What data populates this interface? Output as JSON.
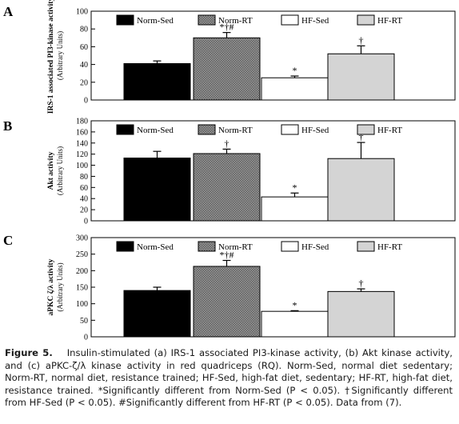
{
  "panels": [
    {
      "letter": "A",
      "ylabel_lines": [
        "IRS-1 associated PI3-kinase activity",
        "(Arbitrary Units)"
      ],
      "ticks": [
        "0",
        "20",
        "40",
        "60",
        "80",
        "100"
      ],
      "legend_labels": [
        "Norm-Sed",
        "Norm-RT",
        "HF-Sed",
        "HF-RT"
      ],
      "markers": [
        "",
        "*†#",
        "*",
        "†"
      ]
    },
    {
      "letter": "B",
      "ylabel_lines": [
        "Akt activity",
        "(Arbitrary Units)"
      ],
      "ticks": [
        "0",
        "20",
        "40",
        "60",
        "80",
        "100",
        "120",
        "140",
        "160",
        "180"
      ],
      "legend_labels": [
        "Norm-Sed",
        "Norm-RT",
        "HF-Sed",
        "HF-RT"
      ],
      "markers": [
        "",
        "†",
        "*",
        "†"
      ]
    },
    {
      "letter": "C",
      "ylabel_lines": [
        "aPKC ζ/λ activity",
        "(Arbitrary Units)"
      ],
      "ticks": [
        "0",
        "50",
        "100",
        "150",
        "200",
        "250",
        "300"
      ],
      "legend_labels": [
        "Norm-Sed",
        "Norm-RT",
        "HF-Sed",
        "HF-RT"
      ],
      "markers": [
        "",
        "*†#",
        "*",
        "†"
      ]
    }
  ],
  "caption": {
    "label": "Figure 5.",
    "text": "Insulin-stimulated (a) IRS-1 associated PI3-kinase activity, (b) Akt kinase activity, and (c) aPKC-ζ/λ kinase activity in red quadriceps (RQ). Norm-Sed, normal diet sedentary; Norm-RT, normal diet, resistance trained; HF-Sed, high-fat diet, sedentary; HF-RT, high-fat diet, resistance trained. *Significantly different from Norm-Sed (P < 0.05). †Significantly different from HF-Sed (P < 0.05). #Significantly different from HF-RT (P < 0.05). Data from (7)."
  },
  "colors": {
    "norm_sed": "#000000",
    "norm_rt": "#7a7a7a",
    "hf_sed": "#ffffff",
    "hf_rt": "#d4d4d4"
  },
  "chart_data": [
    {
      "type": "bar",
      "categories": [
        "Norm-Sed",
        "Norm-RT",
        "HF-Sed",
        "HF-RT"
      ],
      "values": [
        41,
        70,
        25,
        52
      ],
      "errors": [
        3,
        6,
        2,
        9
      ],
      "ylim": [
        0,
        100
      ],
      "grid": false,
      "legend": "top"
    },
    {
      "type": "bar",
      "categories": [
        "Norm-Sed",
        "Norm-RT",
        "HF-Sed",
        "HF-RT"
      ],
      "values": [
        113,
        121,
        43,
        112
      ],
      "errors": [
        12,
        8,
        7,
        29
      ],
      "ylim": [
        0,
        180
      ],
      "grid": false,
      "legend": "top"
    },
    {
      "type": "bar",
      "categories": [
        "Norm-Sed",
        "Norm-RT",
        "HF-Sed",
        "HF-RT"
      ],
      "values": [
        140,
        213,
        77,
        137
      ],
      "errors": [
        10,
        18,
        2,
        8
      ],
      "ylim": [
        0,
        300
      ],
      "grid": false,
      "legend": "top"
    }
  ]
}
